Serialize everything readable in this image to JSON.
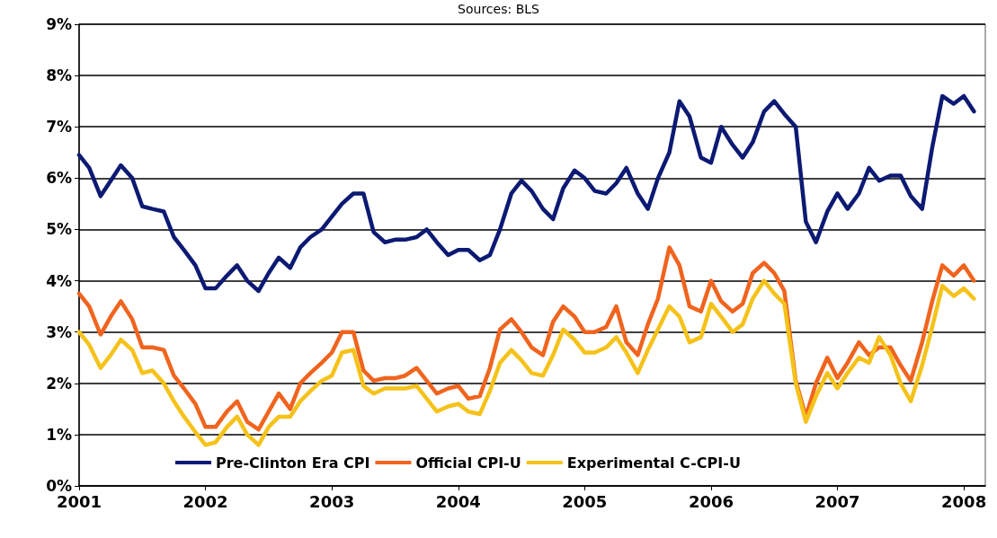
{
  "chart_data": {
    "type": "line",
    "annotations": [
      "Sources: BLS"
    ],
    "x": [
      2001,
      2001.08,
      2001.17,
      2001.25,
      2001.33,
      2001.42,
      2001.5,
      2001.58,
      2001.67,
      2001.75,
      2001.83,
      2001.92,
      2002,
      2002.08,
      2002.17,
      2002.25,
      2002.33,
      2002.42,
      2002.5,
      2002.58,
      2002.67,
      2002.75,
      2002.83,
      2002.92,
      2003,
      2003.08,
      2003.17,
      2003.25,
      2003.33,
      2003.42,
      2003.5,
      2003.58,
      2003.67,
      2003.75,
      2003.83,
      2003.92,
      2004,
      2004.08,
      2004.17,
      2004.25,
      2004.33,
      2004.42,
      2004.5,
      2004.58,
      2004.67,
      2004.75,
      2004.83,
      2004.92,
      2005,
      2005.08,
      2005.17,
      2005.25,
      2005.33,
      2005.42,
      2005.5,
      2005.58,
      2005.67,
      2005.75,
      2005.83,
      2005.92,
      2006,
      2006.08,
      2006.17,
      2006.25,
      2006.33,
      2006.42,
      2006.5,
      2006.58,
      2006.67,
      2006.75,
      2006.83,
      2006.92,
      2007,
      2007.08,
      2007.17,
      2007.25,
      2007.33,
      2007.42,
      2007.5,
      2007.58,
      2007.67,
      2007.75,
      2007.83,
      2007.92,
      2008,
      2008.08
    ],
    "series": [
      {
        "name": "Pre-Clinton Era CPI",
        "color": "#0c1a73",
        "values": [
          6.45,
          6.2,
          5.65,
          5.95,
          6.25,
          6.0,
          5.45,
          5.4,
          5.35,
          4.85,
          4.6,
          4.3,
          3.85,
          3.85,
          4.1,
          4.3,
          4.0,
          3.8,
          4.15,
          4.45,
          4.25,
          4.65,
          4.85,
          5.0,
          5.25,
          5.5,
          5.7,
          5.7,
          4.95,
          4.75,
          4.8,
          4.8,
          4.85,
          5.0,
          4.75,
          4.5,
          4.6,
          4.6,
          4.4,
          4.5,
          5.0,
          5.7,
          5.95,
          5.75,
          5.4,
          5.2,
          5.8,
          6.15,
          6.0,
          5.75,
          5.7,
          5.9,
          6.2,
          5.7,
          5.4,
          6.0,
          6.5,
          7.5,
          7.2,
          6.4,
          6.3,
          7.0,
          6.65,
          6.4,
          6.7,
          7.3,
          7.5,
          7.25,
          7.0,
          5.15,
          4.75,
          5.35,
          5.7,
          5.4,
          5.7,
          6.2,
          5.95,
          6.05,
          6.05,
          5.65,
          5.4,
          6.6,
          7.6,
          7.45,
          7.6,
          7.3
        ]
      },
      {
        "name": "Official CPI-U",
        "color": "#f0641e",
        "values": [
          3.75,
          3.5,
          2.95,
          3.3,
          3.6,
          3.25,
          2.7,
          2.7,
          2.65,
          2.15,
          1.9,
          1.6,
          1.15,
          1.15,
          1.45,
          1.65,
          1.25,
          1.1,
          1.45,
          1.8,
          1.5,
          2.0,
          2.2,
          2.4,
          2.6,
          3.0,
          3.0,
          2.25,
          2.05,
          2.1,
          2.1,
          2.15,
          2.3,
          2.05,
          1.8,
          1.9,
          1.95,
          1.7,
          1.75,
          2.3,
          3.05,
          3.25,
          3.0,
          2.7,
          2.55,
          3.2,
          3.5,
          3.3,
          3.0,
          3.0,
          3.1,
          3.5,
          2.8,
          2.55,
          3.15,
          3.65,
          4.65,
          4.3,
          3.5,
          3.4,
          4.0,
          3.6,
          3.4,
          3.55,
          4.15,
          4.35,
          4.15,
          3.8,
          2.05,
          1.35,
          2.0,
          2.5,
          2.1,
          2.4,
          2.8,
          2.55,
          2.7,
          2.7,
          2.35,
          2.05,
          2.8,
          3.6,
          4.3,
          4.1,
          4.3,
          4.0
        ]
      },
      {
        "name": "Experimental C-CPI-U",
        "color": "#f5c21a",
        "values": [
          3.0,
          2.75,
          2.3,
          2.55,
          2.85,
          2.65,
          2.2,
          2.25,
          2.0,
          1.65,
          1.35,
          1.05,
          0.8,
          0.85,
          1.15,
          1.35,
          1.0,
          0.8,
          1.15,
          1.35,
          1.35,
          1.65,
          1.85,
          2.05,
          2.15,
          2.6,
          2.65,
          1.95,
          1.8,
          1.9,
          1.9,
          1.9,
          1.95,
          1.7,
          1.45,
          1.55,
          1.6,
          1.45,
          1.4,
          1.85,
          2.4,
          2.65,
          2.45,
          2.2,
          2.15,
          2.55,
          3.05,
          2.85,
          2.6,
          2.6,
          2.7,
          2.9,
          2.6,
          2.2,
          2.65,
          3.05,
          3.5,
          3.3,
          2.8,
          2.9,
          3.55,
          3.3,
          3.0,
          3.15,
          3.65,
          4.0,
          3.75,
          3.55,
          2.0,
          1.25,
          1.75,
          2.2,
          1.9,
          2.2,
          2.5,
          2.4,
          2.9,
          2.55,
          2.0,
          1.65,
          2.35,
          3.1,
          3.9,
          3.7,
          3.85,
          3.65
        ]
      }
    ],
    "xlim": [
      2001,
      2008.17
    ],
    "xticks": [
      2001,
      2002,
      2003,
      2004,
      2005,
      2006,
      2007,
      2008
    ],
    "ylim": [
      0,
      9
    ],
    "yticks": [
      {
        "value": 0,
        "label": "0%"
      },
      {
        "value": 1,
        "label": "1%"
      },
      {
        "value": 2,
        "label": "2%"
      },
      {
        "value": 3,
        "label": "3%"
      },
      {
        "value": 4,
        "label": "4%"
      },
      {
        "value": 5,
        "label": "5%"
      },
      {
        "value": 6,
        "label": "6%"
      },
      {
        "value": 7,
        "label": "7%"
      },
      {
        "value": 8,
        "label": "8%"
      },
      {
        "value": 9,
        "label": "9%"
      }
    ],
    "grid": "y",
    "legend": "bottom",
    "marker": "none",
    "line_style": "solid"
  }
}
